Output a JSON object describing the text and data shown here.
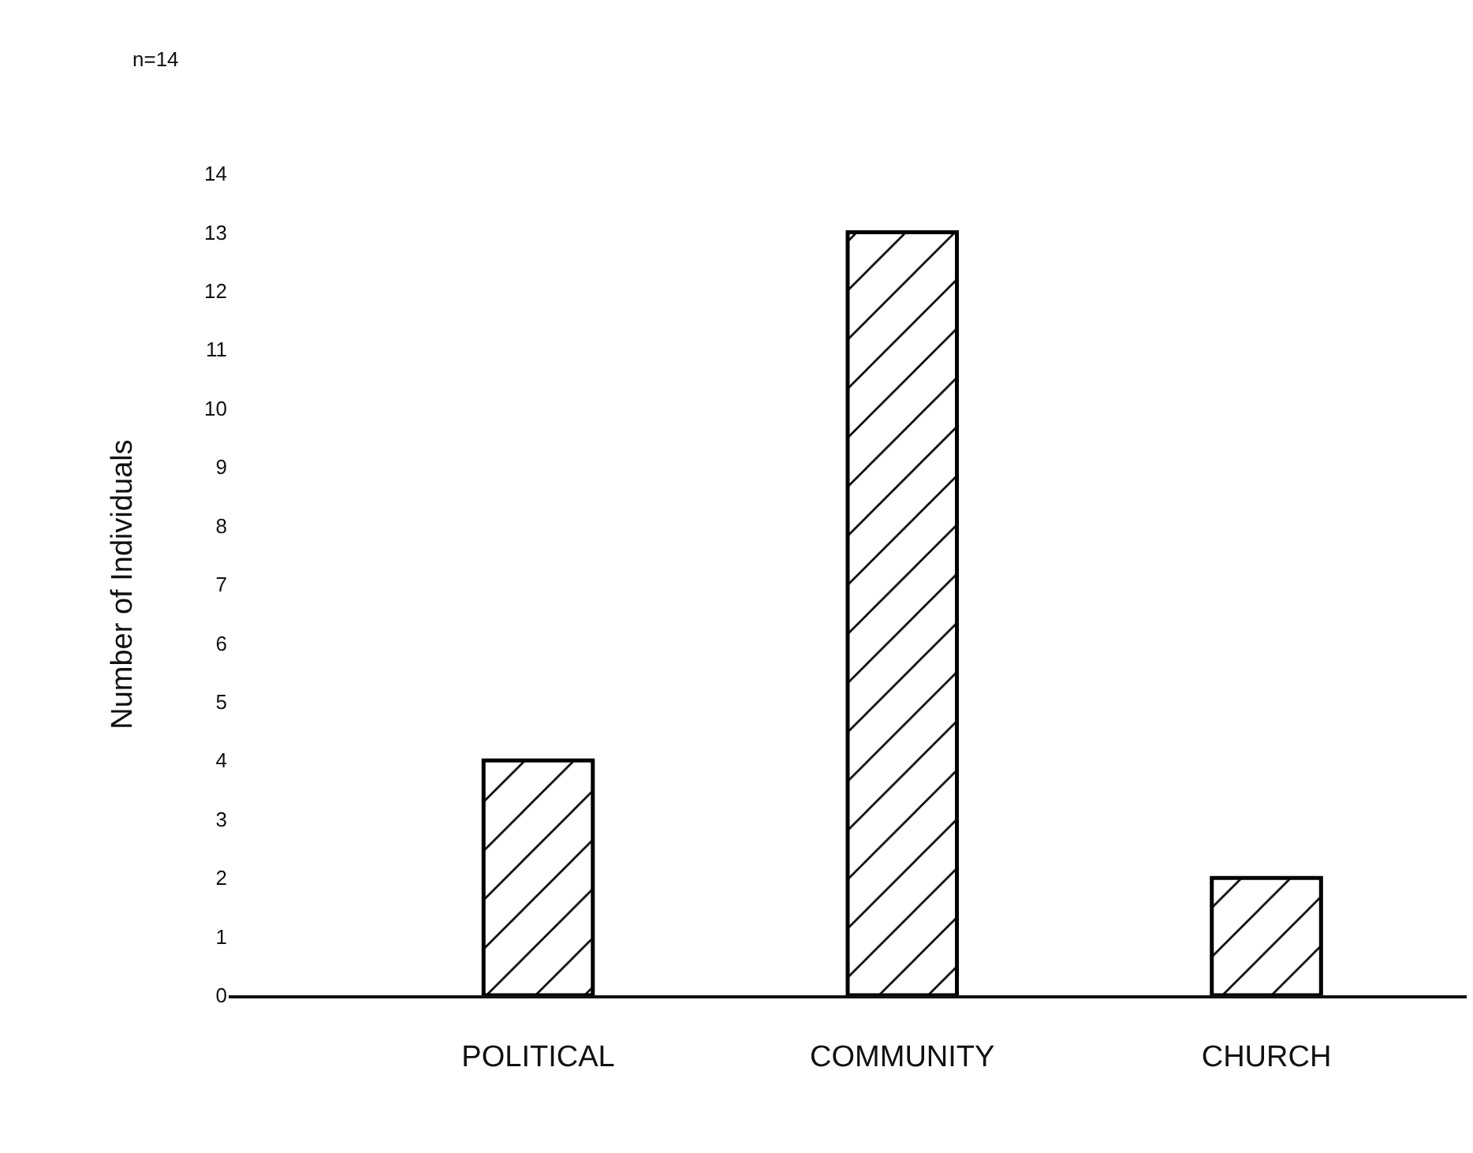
{
  "chart_data": {
    "type": "bar",
    "ylabel": "Number of Individuals",
    "categories": [
      "POLITICAL",
      "COMMUNITY",
      "CHURCH"
    ],
    "values": [
      4,
      13,
      2
    ],
    "color": "#000000",
    "ylim": [
      0,
      14
    ],
    "yticks": [
      0,
      1,
      2,
      3,
      4,
      5,
      6,
      7,
      8,
      9,
      10,
      11,
      12,
      13,
      14
    ],
    "grid": false,
    "legend": false,
    "annotations": [
      "n=14"
    ]
  }
}
